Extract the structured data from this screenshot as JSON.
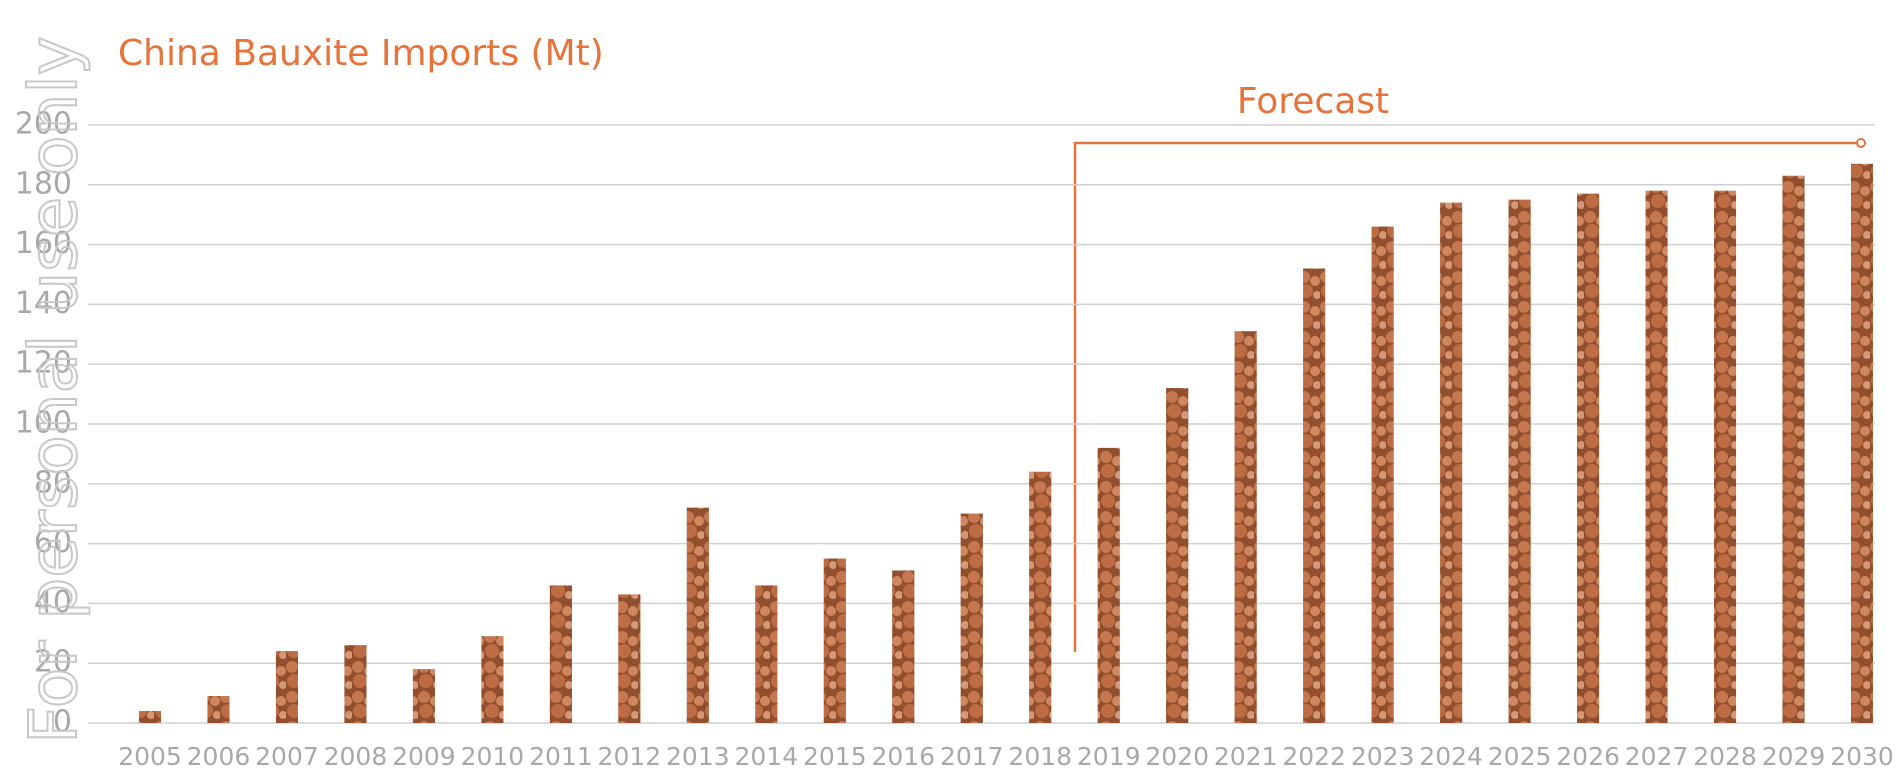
{
  "chart_data": {
    "type": "bar",
    "title": "China Bauxite Imports (Mt)",
    "annotation": "Forecast",
    "watermark": "For personal use only",
    "categories": [
      "2005",
      "2006",
      "2007",
      "2008",
      "2009",
      "2010",
      "2011",
      "2012",
      "2013",
      "2014",
      "2015",
      "2016",
      "2017",
      "2018",
      "2019",
      "2020",
      "2021",
      "2022",
      "2023",
      "2024",
      "2025",
      "2026",
      "2027",
      "2028",
      "2029",
      "2030"
    ],
    "values": [
      4,
      9,
      24,
      26,
      18,
      29,
      46,
      43,
      72,
      46,
      55,
      51,
      70,
      84,
      92,
      112,
      131,
      152,
      166,
      174,
      175,
      177,
      178,
      178,
      183,
      187
    ],
    "color": "#b8693f",
    "ylim": [
      0,
      200
    ],
    "yticks": [
      0,
      20,
      40,
      60,
      80,
      100,
      120,
      140,
      160,
      180,
      200
    ],
    "grid": true
  }
}
